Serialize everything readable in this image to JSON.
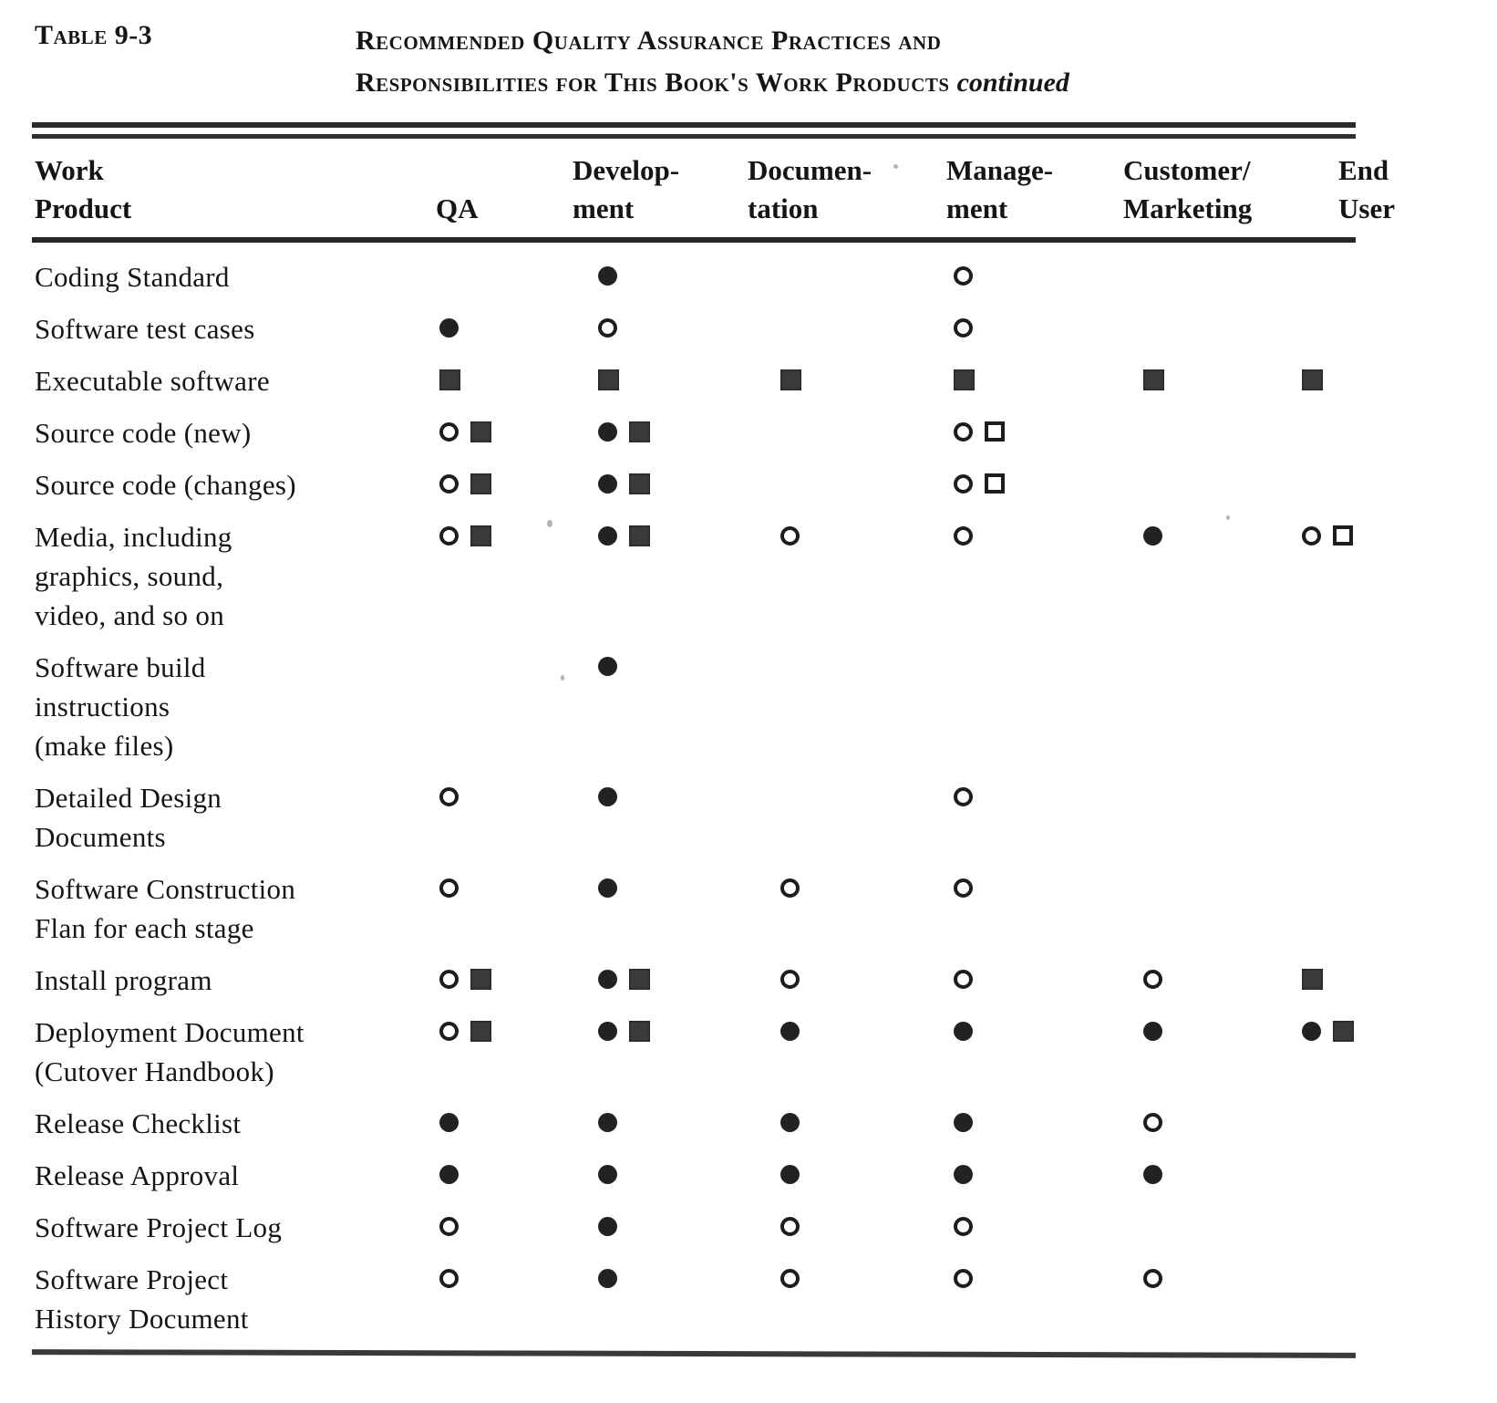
{
  "title": {
    "table_number": "Table 9-3",
    "line1": "Recommended Quality Assurance Practices and",
    "line2": "Responsibilities for This Book's Work Products",
    "continued": "continued"
  },
  "symbols": {
    "filled-circle": "●",
    "open-circle": "○",
    "filled-square": "■",
    "open-square": "□"
  },
  "colors": {
    "ink": "#151515",
    "square_fill": "#3b3b3b",
    "background": "#ffffff"
  },
  "table": {
    "columns": [
      {
        "key": "label",
        "lines": [
          "Work",
          "Product"
        ]
      },
      {
        "key": "qa",
        "lines": [
          "QA"
        ]
      },
      {
        "key": "development",
        "lines": [
          "Develop-",
          "ment"
        ]
      },
      {
        "key": "documentation",
        "lines": [
          "Documen-",
          "tation"
        ]
      },
      {
        "key": "management",
        "lines": [
          "Manage-",
          "ment"
        ]
      },
      {
        "key": "customer",
        "lines": [
          "Customer/",
          "Marketing"
        ]
      },
      {
        "key": "enduser",
        "lines": [
          "End",
          "User"
        ]
      }
    ],
    "rows": [
      {
        "label": [
          "Coding Standard"
        ],
        "cells": {
          "qa": [],
          "development": [
            "filled-circle"
          ],
          "documentation": [],
          "management": [
            "open-circle"
          ],
          "customer": [],
          "enduser": []
        }
      },
      {
        "label": [
          "Software test cases"
        ],
        "cells": {
          "qa": [
            "filled-circle"
          ],
          "development": [
            "open-circle"
          ],
          "documentation": [],
          "management": [
            "open-circle"
          ],
          "customer": [],
          "enduser": []
        }
      },
      {
        "label": [
          "Executable software"
        ],
        "cells": {
          "qa": [
            "filled-square"
          ],
          "development": [
            "filled-square"
          ],
          "documentation": [
            "filled-square"
          ],
          "management": [
            "filled-square"
          ],
          "customer": [
            "filled-square"
          ],
          "enduser": [
            "filled-square"
          ]
        }
      },
      {
        "label": [
          "Source code (new)"
        ],
        "cells": {
          "qa": [
            "open-circle",
            "filled-square"
          ],
          "development": [
            "filled-circle",
            "filled-square"
          ],
          "documentation": [],
          "management": [
            "open-circle",
            "open-square"
          ],
          "customer": [],
          "enduser": []
        }
      },
      {
        "label": [
          "Source code (changes)"
        ],
        "cells": {
          "qa": [
            "open-circle",
            "filled-square"
          ],
          "development": [
            "filled-circle",
            "filled-square"
          ],
          "documentation": [],
          "management": [
            "open-circle",
            "open-square"
          ],
          "customer": [],
          "enduser": []
        }
      },
      {
        "label": [
          "Media, including",
          "graphics, sound,",
          "video, and so on"
        ],
        "cells": {
          "qa": [
            "open-circle",
            "filled-square"
          ],
          "development": [
            "filled-circle",
            "filled-square"
          ],
          "documentation": [
            "open-circle"
          ],
          "management": [
            "open-circle"
          ],
          "customer": [
            "filled-circle"
          ],
          "enduser": [
            "open-circle",
            "open-square"
          ]
        }
      },
      {
        "label": [
          "Software  build",
          "instructions",
          "(make files)"
        ],
        "cells": {
          "qa": [],
          "development": [
            "filled-circle"
          ],
          "documentation": [],
          "management": [],
          "customer": [],
          "enduser": []
        }
      },
      {
        "label": [
          "Detailed Design",
          "Documents"
        ],
        "cells": {
          "qa": [
            "open-circle"
          ],
          "development": [
            "filled-circle"
          ],
          "documentation": [],
          "management": [
            "open-circle"
          ],
          "customer": [],
          "enduser": []
        }
      },
      {
        "label": [
          "Software  Construction",
          "Flan for each stage"
        ],
        "cells": {
          "qa": [
            "open-circle"
          ],
          "development": [
            "filled-circle"
          ],
          "documentation": [
            "open-circle"
          ],
          "management": [
            "open-circle"
          ],
          "customer": [],
          "enduser": []
        }
      },
      {
        "label": [
          "Install program"
        ],
        "cells": {
          "qa": [
            "open-circle",
            "filled-square"
          ],
          "development": [
            "filled-circle",
            "filled-square"
          ],
          "documentation": [
            "open-circle"
          ],
          "management": [
            "open-circle"
          ],
          "customer": [
            "open-circle"
          ],
          "enduser": [
            "filled-square"
          ]
        }
      },
      {
        "label": [
          "Deployment Document",
          "(Cutover  Handbook)"
        ],
        "cells": {
          "qa": [
            "open-circle",
            "filled-square"
          ],
          "development": [
            "filled-circle",
            "filled-square"
          ],
          "documentation": [
            "filled-circle"
          ],
          "management": [
            "filled-circle"
          ],
          "customer": [
            "filled-circle"
          ],
          "enduser": [
            "filled-circle",
            "filled-square"
          ]
        }
      },
      {
        "label": [
          "Release  Checklist"
        ],
        "cells": {
          "qa": [
            "filled-circle"
          ],
          "development": [
            "filled-circle"
          ],
          "documentation": [
            "filled-circle"
          ],
          "management": [
            "filled-circle"
          ],
          "customer": [
            "open-circle"
          ],
          "enduser": []
        }
      },
      {
        "label": [
          "Release  Approval"
        ],
        "cells": {
          "qa": [
            "filled-circle"
          ],
          "development": [
            "filled-circle"
          ],
          "documentation": [
            "filled-circle"
          ],
          "management": [
            "filled-circle"
          ],
          "customer": [
            "filled-circle"
          ],
          "enduser": []
        }
      },
      {
        "label": [
          "Software Project Log"
        ],
        "cells": {
          "qa": [
            "open-circle"
          ],
          "development": [
            "filled-circle"
          ],
          "documentation": [
            "open-circle"
          ],
          "management": [
            "open-circle"
          ],
          "customer": [],
          "enduser": []
        }
      },
      {
        "label": [
          "Software Project",
          "History Document"
        ],
        "cells": {
          "qa": [
            "open-circle"
          ],
          "development": [
            "filled-circle"
          ],
          "documentation": [
            "open-circle"
          ],
          "management": [
            "open-circle"
          ],
          "customer": [
            "open-circle"
          ],
          "enduser": []
        }
      }
    ]
  }
}
